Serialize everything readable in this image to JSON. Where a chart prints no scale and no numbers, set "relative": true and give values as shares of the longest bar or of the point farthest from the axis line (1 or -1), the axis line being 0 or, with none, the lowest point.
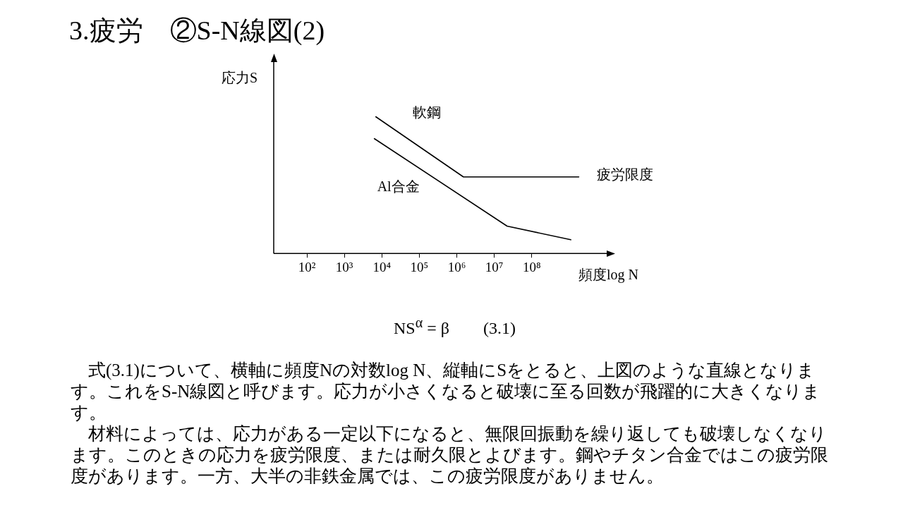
{
  "chart_data": {
    "type": "line",
    "title": "3.疲労　②S-N線図(2)",
    "xlabel": "頻度log N",
    "ylabel": "応力S",
    "relative": true,
    "log": "x",
    "marker": "none",
    "line_style": "solid",
    "legend": false,
    "grid": false,
    "tick_labels": "x",
    "xlim": [
      13,
      10000000000
    ],
    "xticks": [
      {
        "value": 100,
        "label": "10²"
      },
      {
        "value": 1000,
        "label": "10³"
      },
      {
        "value": 10000,
        "label": "10⁴"
      },
      {
        "value": 100000,
        "label": "10⁵"
      },
      {
        "value": 1000000,
        "label": "10⁶"
      },
      {
        "value": 10000000,
        "label": "10⁷"
      },
      {
        "value": 100000000,
        "label": "10⁸"
      }
    ],
    "series": [
      {
        "name": "軟鋼",
        "color": "#000000",
        "x": [
          6900,
          1500000,
          1800000000
        ],
        "values": [
          1,
          0.56,
          0.56
        ]
      },
      {
        "name": "Al合金",
        "color": "#000000",
        "x": [
          6300,
          22000000,
          1100000000
        ],
        "values": [
          0.84,
          0.2,
          0.1
        ]
      }
    ],
    "annotations": [
      "疲労限度",
      "NS$^{α}$ = β　　(3.1)",
      "　式(3.1)について、横軸に頻度Nの対数log N、縦軸にSをとると、上図のような直線となります。これをS-N線図と呼びます。応力が小さくなると破壊に至る回数が飛躍的に大きくなります。",
      "　材料によっては、応力がある一定以下になると、無限回振動を繰り返しても破壊しなくなります。このときの応力を疲労限度、または耐久限とよびます。鋼やチタン合金ではこの疲労限度があります。一方、大半の非鉄金属では、この疲労限度がありません。"
    ]
  }
}
